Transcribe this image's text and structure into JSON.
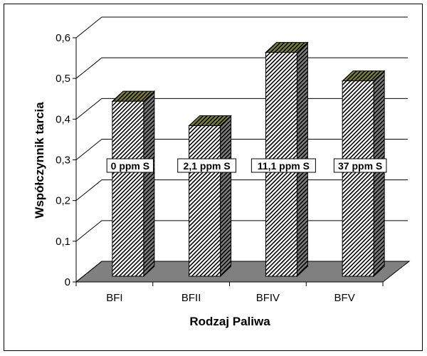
{
  "chart_data": {
    "type": "bar",
    "style": "3d-column",
    "categories": [
      "BFI",
      "BFII",
      "BFIV",
      "BFV"
    ],
    "values": [
      0.43,
      0.37,
      0.55,
      0.48
    ],
    "data_labels": [
      "0 ppm S",
      "2,1 ppm S",
      "11,1 ppm S",
      "37 ppm S"
    ],
    "xlabel": "Rodzaj Paliwa",
    "ylabel": "Współczynnik tarcia",
    "ylim": [
      0,
      0.6
    ],
    "yticks": [
      "0",
      "0,1",
      "0,2",
      "0,3",
      "0,4",
      "0,5",
      "0,6"
    ],
    "grid": true,
    "colors": {
      "front": "#ffffff",
      "hatch": "#000000",
      "top": "#808040",
      "side": "#808080",
      "floor": "#808080"
    }
  }
}
